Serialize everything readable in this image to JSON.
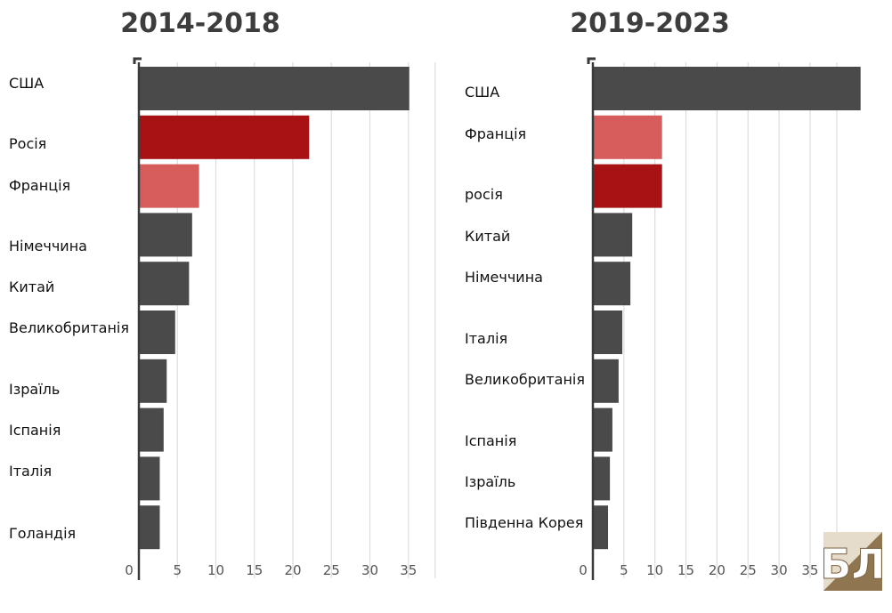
{
  "colors": {
    "dark": "#4a4a4a",
    "red": "#a81214",
    "pink": "#d65d5b",
    "grid": "#dddddd",
    "axis": "#3a3a3a",
    "logo_gold": "#b39060"
  },
  "logo_text": "БЛ",
  "chart_data": [
    {
      "type": "bar",
      "orientation": "horizontal",
      "title": "2014-2018",
      "categories": [
        "США",
        "Росія",
        "Франція",
        "Німеччина",
        "Китай",
        "Великобританія",
        "Ізраїль",
        "Іспанія",
        "Італія",
        "Голандія"
      ],
      "values": [
        35,
        22,
        7.7,
        6.8,
        6.4,
        4.6,
        3.5,
        3.1,
        2.6,
        2.6
      ],
      "bar_colors": [
        "dark",
        "red",
        "pink",
        "dark",
        "dark",
        "dark",
        "dark",
        "dark",
        "dark",
        "dark"
      ],
      "xlim": [
        0,
        36
      ],
      "xticks": [
        0,
        5,
        10,
        15,
        20,
        25,
        30,
        35
      ],
      "grid": true
    },
    {
      "type": "bar",
      "orientation": "horizontal",
      "title": "2019-2023",
      "categories": [
        "США",
        "Франція",
        "росія",
        "Китай",
        "Німеччина",
        "Італія",
        "Великобританія",
        "Іспанія",
        "Ізраїль",
        "Південна Корея"
      ],
      "values": [
        43,
        11,
        11,
        6.2,
        5.9,
        4.6,
        4.0,
        3.0,
        2.6,
        2.3
      ],
      "bar_colors": [
        "dark",
        "pink",
        "red",
        "dark",
        "dark",
        "dark",
        "dark",
        "dark",
        "dark",
        "dark"
      ],
      "xlim": [
        0,
        44
      ],
      "xticks": [
        0,
        5,
        10,
        15,
        20,
        25,
        30,
        35
      ],
      "grid": true
    }
  ]
}
